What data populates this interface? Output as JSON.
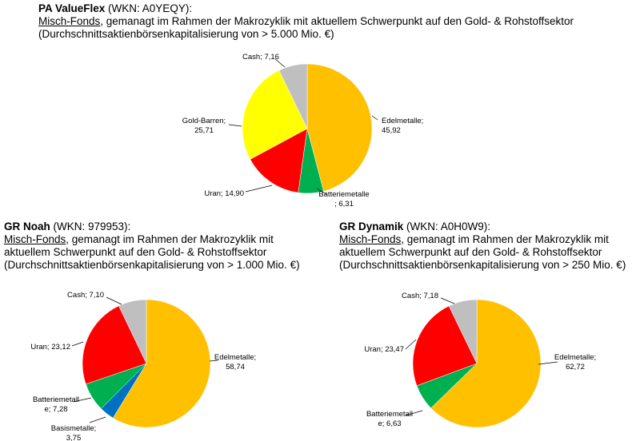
{
  "funds": [
    {
      "name": "PA ValueFlex",
      "wkn": " (WKN: A0YEQY):",
      "type": "Misch-Fonds",
      "desc1": ", gemanagt im Rahmen der Makrozyklik mit aktuellem Schwerpunkt auf den Gold- & Rohstoffsektor",
      "desc2": "",
      "desc3": "(Durchschnittsaktienbörsenkapitalisierung von > 5.000 Mio. €)"
    },
    {
      "name": "GR Noah",
      "wkn": " (WKN: 979953):",
      "type": "Misch-Fonds",
      "desc1": ", gemanagt im Rahmen der Makrozyklik mit",
      "desc2": "aktuellem Schwerpunkt auf den Gold- & Rohstoffsektor",
      "desc3": "(Durchschnittsaktienbörsenkapitalisierung von > 1.000 Mio. €)"
    },
    {
      "name": "GR Dynamik",
      "wkn": " (WKN: A0H0W9):",
      "type": "Misch-Fonds",
      "desc1": ", gemanagt im Rahmen der Makrozyklik mit",
      "desc2": "aktuellem Schwerpunkt auf den Gold- & Rohstoffsektor",
      "desc3": "(Durchschnittsaktienbörsenkapitalisierung von > 250 Mio. €)"
    }
  ],
  "colors": {
    "edelmetalle": "#FFC000",
    "batteriemetalle": "#00B050",
    "basismetalle": "#0070C0",
    "uran": "#FF0000",
    "gold_barren": "#FFFF00",
    "cash": "#BFBFBF"
  },
  "chart_data": [
    {
      "type": "pie",
      "title": "PA ValueFlex",
      "slices": [
        {
          "name": "Edelmetalle",
          "value": 45.92,
          "label_lines": [
            "Edelmetalle;",
            "45,92"
          ],
          "color_key": "edelmetalle"
        },
        {
          "name": "Batteriemetalle",
          "value": 6.31,
          "label_lines": [
            "Batteriemetalle",
            "; 6,31"
          ],
          "color_key": "batteriemetalle"
        },
        {
          "name": "Uran",
          "value": 14.9,
          "label_lines": [
            "Uran; 14,90"
          ],
          "color_key": "uran"
        },
        {
          "name": "Gold-Barren",
          "value": 25.71,
          "label_lines": [
            "Gold-Barren;",
            "25,71"
          ],
          "color_key": "gold_barren"
        },
        {
          "name": "Cash",
          "value": 7.16,
          "label_lines": [
            "Cash; 7,16"
          ],
          "color_key": "cash"
        }
      ]
    },
    {
      "type": "pie",
      "title": "GR Noah",
      "slices": [
        {
          "name": "Edelmetalle",
          "value": 58.74,
          "label_lines": [
            "Edelmetalle;",
            "58,74"
          ],
          "color_key": "edelmetalle"
        },
        {
          "name": "Basismetalle",
          "value": 3.75,
          "label_lines": [
            "Basismetalle;",
            "3,75"
          ],
          "color_key": "basismetalle"
        },
        {
          "name": "Batteriemetalle",
          "value": 7.28,
          "label_lines": [
            "Batteriemetall",
            "e; 7,28"
          ],
          "color_key": "batteriemetalle"
        },
        {
          "name": "Uran",
          "value": 23.12,
          "label_lines": [
            "Uran; 23,12"
          ],
          "color_key": "uran"
        },
        {
          "name": "Cash",
          "value": 7.1,
          "label_lines": [
            "Cash; 7,10"
          ],
          "color_key": "cash"
        }
      ]
    },
    {
      "type": "pie",
      "title": "GR Dynamik",
      "slices": [
        {
          "name": "Edelmetalle",
          "value": 62.72,
          "label_lines": [
            "Edelmetalle;",
            "62,72"
          ],
          "color_key": "edelmetalle"
        },
        {
          "name": "Batteriemetalle",
          "value": 6.63,
          "label_lines": [
            "Batteriemetall",
            "e; 6,63"
          ],
          "color_key": "batteriemetalle"
        },
        {
          "name": "Uran",
          "value": 23.47,
          "label_lines": [
            "Uran; 23,47"
          ],
          "color_key": "uran"
        },
        {
          "name": "Cash",
          "value": 7.18,
          "label_lines": [
            "Cash; 7,18"
          ],
          "color_key": "cash"
        }
      ]
    }
  ]
}
